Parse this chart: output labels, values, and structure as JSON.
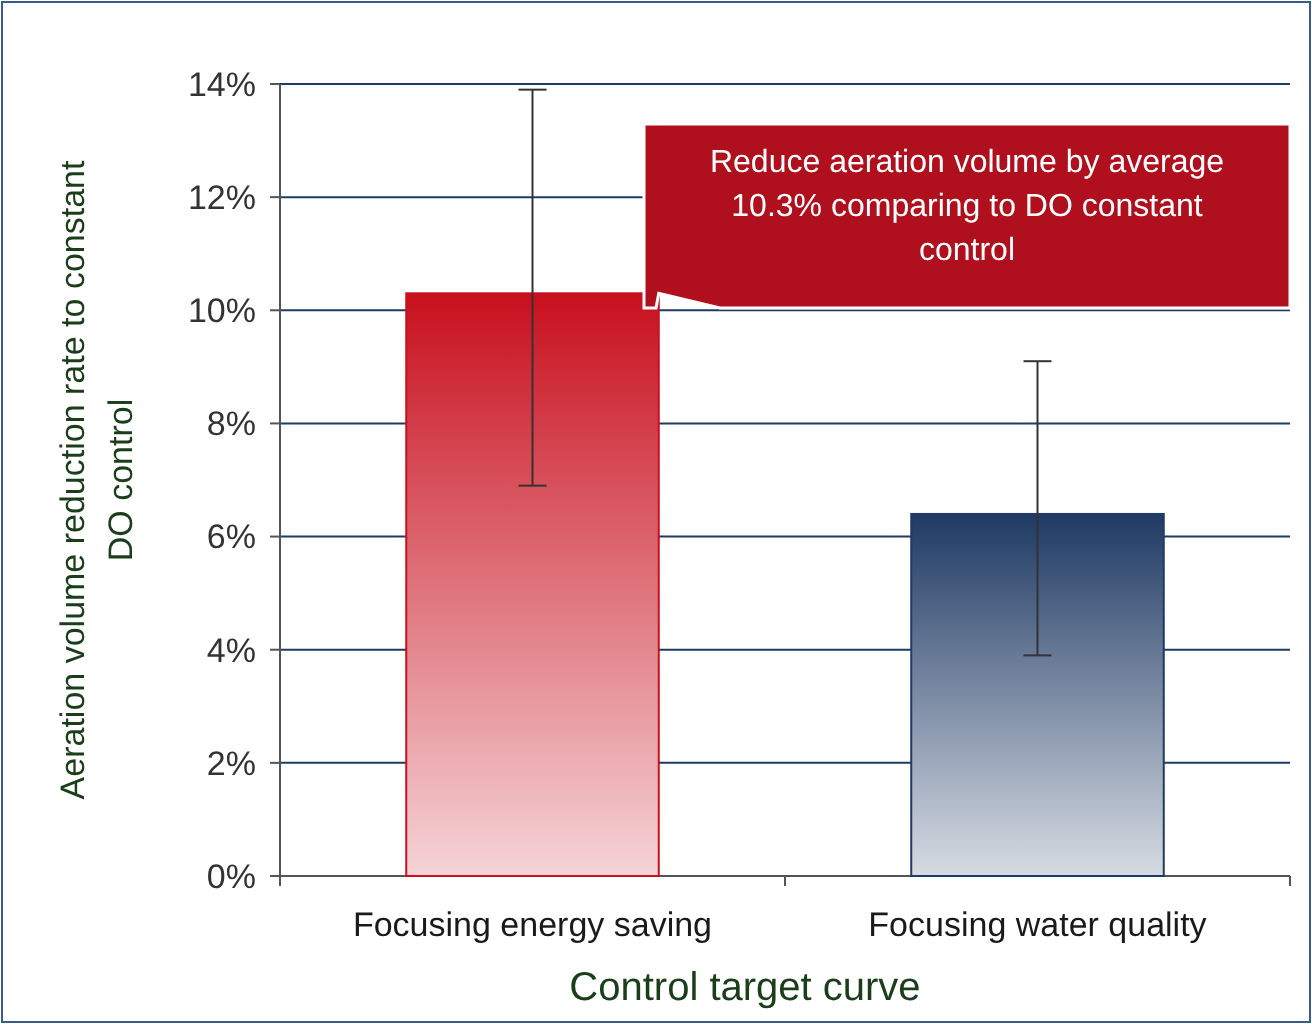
{
  "chart_data": {
    "type": "bar",
    "xlabel": "Control target curve",
    "ylabel": "Aeration volume reduction rate to constant DO control",
    "categories": [
      "Focusing energy saving",
      "Focusing water quality"
    ],
    "values": [
      10.3,
      6.4
    ],
    "colors": [
      "#c8101e",
      "#1f3a64"
    ],
    "errors": [
      [
        6.9,
        13.9
      ],
      [
        3.9,
        9.1
      ]
    ],
    "ylim": [
      0,
      14
    ],
    "yticks": [
      {
        "value": 0,
        "label": "0%"
      },
      {
        "value": 2,
        "label": "2%"
      },
      {
        "value": 4,
        "label": "4%"
      },
      {
        "value": 6,
        "label": "6%"
      },
      {
        "value": 8,
        "label": "8%"
      },
      {
        "value": 10,
        "label": "10%"
      },
      {
        "value": 12,
        "label": "12%"
      },
      {
        "value": 14,
        "label": "14%"
      }
    ],
    "grid": "y",
    "annotations": [
      "Reduce aeration volume by average 10.3% comparing to DO constant control"
    ]
  }
}
